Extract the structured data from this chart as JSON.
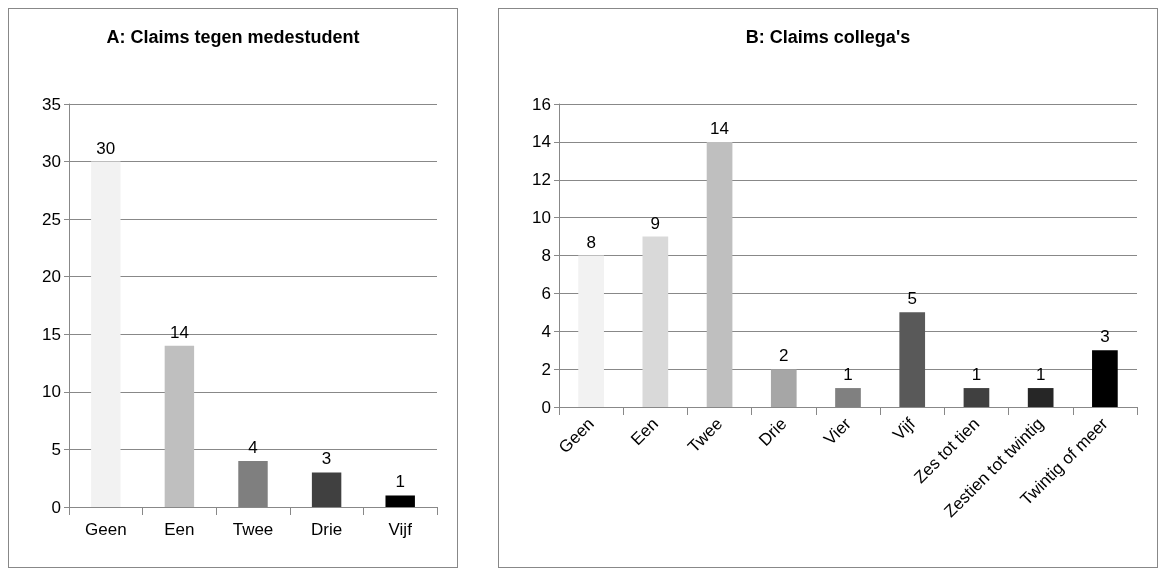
{
  "chart_data": [
    {
      "type": "bar",
      "title": "A: Claims tegen medestudent",
      "categories": [
        "Geen",
        "Een",
        "Twee",
        "Drie",
        "Vijf"
      ],
      "values": [
        30,
        14,
        4,
        3,
        1
      ],
      "colors": [
        "#f2f2f2",
        "#bfbfbf",
        "#7f7f7f",
        "#404040",
        "#000000"
      ],
      "ylim": [
        0,
        35
      ],
      "yticks": [
        0,
        5,
        10,
        15,
        20,
        25,
        30,
        35
      ],
      "grid": "y",
      "data_labels": true
    },
    {
      "type": "bar",
      "title": "B: Claims collega's",
      "categories": [
        "Geen",
        "Een",
        "Twee",
        "Drie",
        "Vier",
        "Vijf",
        "Zes tot tien",
        "Zestien tot twintig",
        "Twintig of meer"
      ],
      "values": [
        8,
        9,
        14,
        2,
        1,
        5,
        1,
        1,
        3
      ],
      "colors": [
        "#f2f2f2",
        "#d9d9d9",
        "#bfbfbf",
        "#a6a6a6",
        "#808080",
        "#595959",
        "#404040",
        "#262626",
        "#000000"
      ],
      "ylim": [
        0,
        16
      ],
      "yticks": [
        0,
        2,
        4,
        6,
        8,
        10,
        12,
        14,
        16
      ],
      "grid": "y",
      "data_labels": true
    }
  ]
}
